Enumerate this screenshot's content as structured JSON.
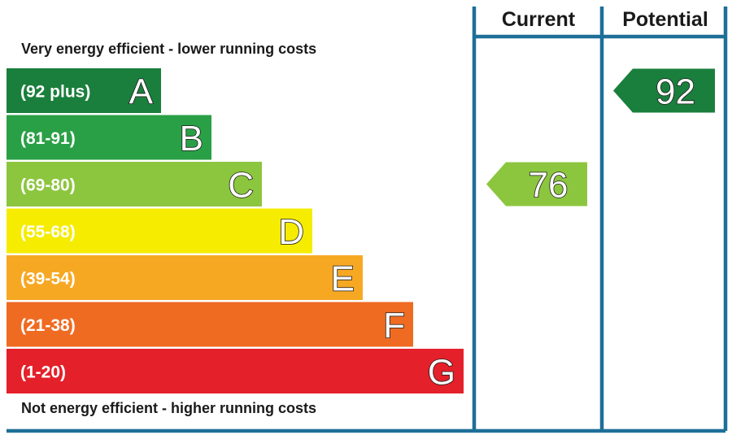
{
  "chart_data": {
    "type": "bar",
    "title": "",
    "top_caption": "Very energy efficient - lower running costs",
    "bottom_caption": "Not energy efficient - higher running costs",
    "bands": [
      {
        "letter": "A",
        "range": "(92 plus)",
        "min": 92,
        "max": 100,
        "color": "#1a7f3c"
      },
      {
        "letter": "B",
        "range": "(81-91)",
        "min": 81,
        "max": 91,
        "color": "#2aa046"
      },
      {
        "letter": "C",
        "range": "(69-80)",
        "min": 69,
        "max": 80,
        "color": "#8cc63f"
      },
      {
        "letter": "D",
        "range": "(55-68)",
        "min": 55,
        "max": 68,
        "color": "#f5ec00"
      },
      {
        "letter": "E",
        "range": "(39-54)",
        "min": 39,
        "max": 54,
        "color": "#f7a823"
      },
      {
        "letter": "F",
        "range": "(21-38)",
        "min": 21,
        "max": 38,
        "color": "#ef6b22"
      },
      {
        "letter": "G",
        "range": "(1-20)",
        "min": 1,
        "max": 20,
        "color": "#e4202a"
      }
    ],
    "columns": [
      {
        "label": "Current",
        "value": 76,
        "value_label": "76",
        "band": "C",
        "color": "#8cc63f"
      },
      {
        "label": "Potential",
        "value": 92,
        "value_label": "92",
        "band": "A",
        "color": "#1a7f3c"
      }
    ],
    "frame_color": "#1e6f98"
  }
}
